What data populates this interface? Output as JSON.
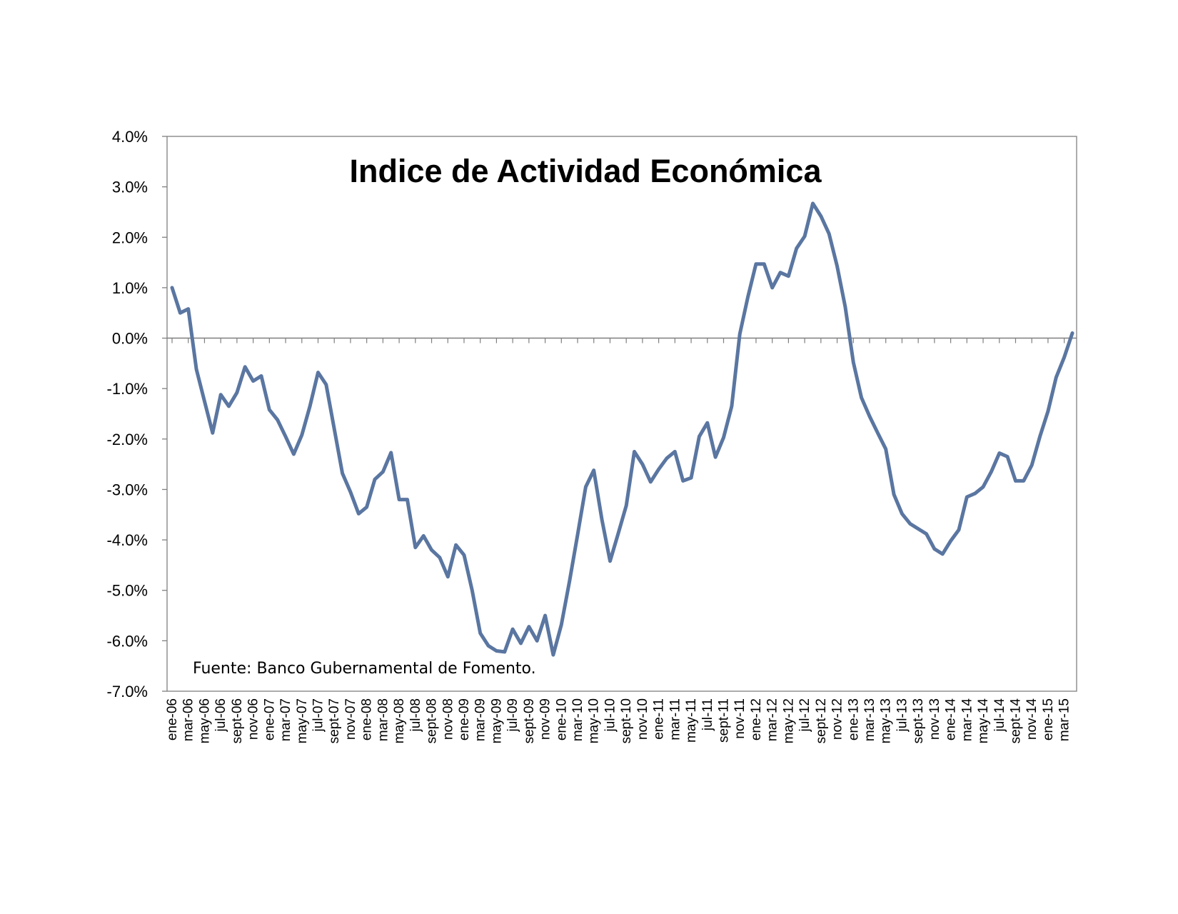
{
  "chart_data": {
    "type": "line",
    "title": "Indice de Actividad Económica",
    "annotation": "Fuente: Banco Gubernamental de Fomento.",
    "xlabel": "",
    "ylabel": "",
    "ylim": [
      -7.0,
      4.0
    ],
    "y_ticks": [
      "4.0%",
      "3.0%",
      "2.0%",
      "1.0%",
      "0.0%",
      "-1.0%",
      "-2.0%",
      "-3.0%",
      "-4.0%",
      "-5.0%",
      "-6.0%",
      "-7.0%"
    ],
    "y_tick_values": [
      4,
      3,
      2,
      1,
      0,
      -1,
      -2,
      -3,
      -4,
      -5,
      -6,
      -7
    ],
    "grid": false,
    "legend": "none",
    "line_color": "#5a76a1",
    "zero_line_color": "#7f7f7f",
    "x_tick_labels": [
      "ene-06",
      "mar-06",
      "may-06",
      "jul-06",
      "sept-06",
      "nov-06",
      "ene-07",
      "mar-07",
      "may-07",
      "jul-07",
      "sept-07",
      "nov-07",
      "ene-08",
      "mar-08",
      "may-08",
      "jul-08",
      "sept-08",
      "nov-08",
      "ene-09",
      "mar-09",
      "may-09",
      "jul-09",
      "sept-09",
      "nov-09",
      "ene-10",
      "mar-10",
      "may-10",
      "jul-10",
      "sept-10",
      "nov-10",
      "ene-11",
      "mar-11",
      "may-11",
      "jul-11",
      "sept-11",
      "nov-11",
      "ene-12",
      "mar-12",
      "may-12",
      "jul-12",
      "sept-12",
      "nov-12",
      "ene-13",
      "mar-13",
      "may-13",
      "jul-13",
      "sept-13",
      "nov-13",
      "ene-14",
      "mar-14",
      "may-14",
      "jul-14",
      "sept-14",
      "nov-14",
      "ene-15",
      "mar-15"
    ],
    "series": [
      {
        "values": [
          1.0,
          0.5,
          0.58,
          -0.62,
          -1.25,
          -1.88,
          -1.12,
          -1.35,
          -1.08,
          -0.57,
          -0.85,
          -0.75,
          -1.42,
          -1.62,
          -1.95,
          -2.3,
          -1.92,
          -1.35,
          -0.68,
          -0.92,
          -1.8,
          -2.68,
          -3.05,
          -3.48,
          -3.35,
          -2.8,
          -2.65,
          -2.27,
          -3.2,
          -3.2,
          -4.15,
          -3.92,
          -4.2,
          -4.35,
          -4.73,
          -4.1,
          -4.3,
          -5.0,
          -5.85,
          -6.1,
          -6.2,
          -6.22,
          -5.77,
          -6.05,
          -5.72,
          -6.0,
          -5.5,
          -6.28,
          -5.68,
          -4.82,
          -3.9,
          -2.95,
          -2.62,
          -3.6,
          -4.42,
          -3.88,
          -3.32,
          -2.25,
          -2.5,
          -2.85,
          -2.6,
          -2.38,
          -2.25,
          -2.83,
          -2.77,
          -1.95,
          -1.68,
          -2.36,
          -1.97,
          -1.35,
          0.08,
          0.82,
          1.47,
          1.47,
          1.0,
          1.3,
          1.23,
          1.78,
          2.02,
          2.67,
          2.42,
          2.07,
          1.43,
          0.62,
          -0.48,
          -1.18,
          -1.55,
          -1.88,
          -2.2,
          -3.1,
          -3.48,
          -3.68,
          -3.78,
          -3.88,
          -4.18,
          -4.28,
          -4.02,
          -3.8,
          -3.15,
          -3.08,
          -2.95,
          -2.65,
          -2.28,
          -2.35,
          -2.83,
          -2.83,
          -2.52,
          -1.95,
          -1.45,
          -0.78,
          -0.38,
          0.1
        ]
      }
    ]
  }
}
